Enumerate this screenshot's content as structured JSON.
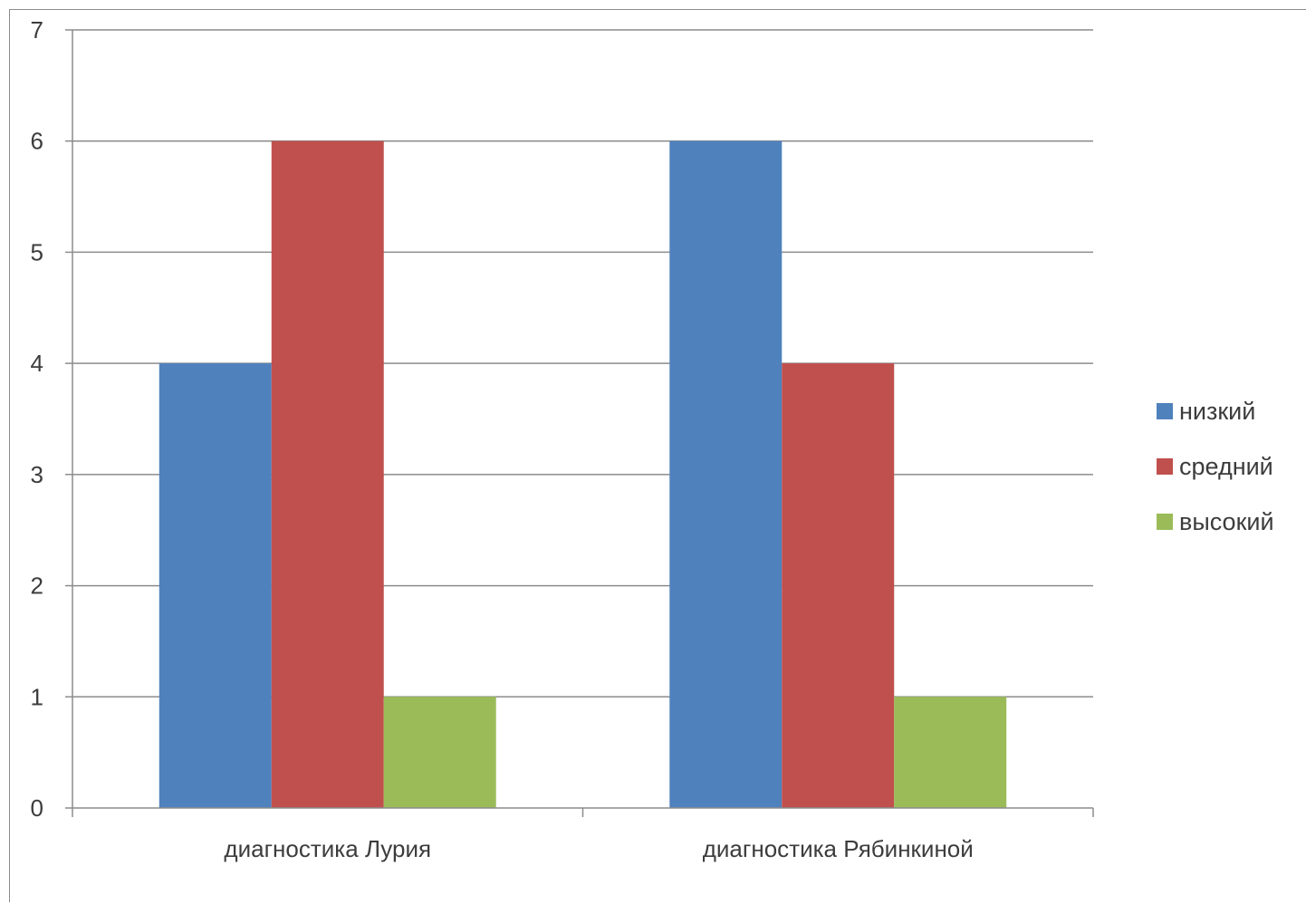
{
  "chart_data": {
    "type": "bar",
    "title": "",
    "xlabel": "",
    "ylabel": "",
    "categories": [
      "диагностика Лурия",
      "диагностика Рябинкиной"
    ],
    "series": [
      {
        "name": "низкий",
        "values": [
          4,
          6
        ],
        "color": "#4f81bd"
      },
      {
        "name": "средний",
        "values": [
          6,
          4
        ],
        "color": "#c0504d"
      },
      {
        "name": "высокий",
        "values": [
          1,
          1
        ],
        "color": "#9bbb59"
      }
    ],
    "ylim": [
      0,
      7
    ],
    "yticks": [
      0,
      1,
      2,
      3,
      4,
      5,
      6,
      7
    ],
    "grid": true,
    "legend_position": "right"
  }
}
